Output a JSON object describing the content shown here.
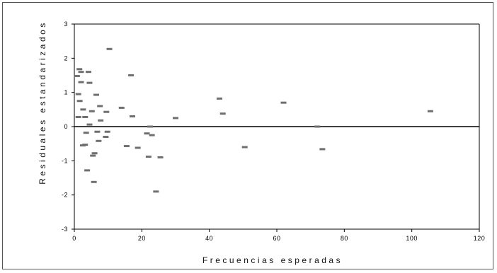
{
  "chart_data": {
    "type": "scatter",
    "xlabel": "Frecuencias esperadas",
    "ylabel": "Residuales estandarizados",
    "xlim": [
      0,
      120
    ],
    "ylim": [
      -3,
      3
    ],
    "xticks": [
      0,
      20,
      40,
      60,
      80,
      100,
      120
    ],
    "yticks": [
      -3,
      -2,
      -1,
      0,
      1,
      2,
      3
    ],
    "legend": "none",
    "grid": false,
    "marker_color": "#6f6f6f",
    "points": [
      {
        "x": 0.8,
        "y": 1.48
      },
      {
        "x": 1.5,
        "y": 1.68
      },
      {
        "x": 2.0,
        "y": 1.6
      },
      {
        "x": 2.0,
        "y": 1.3
      },
      {
        "x": 1.2,
        "y": 0.95
      },
      {
        "x": 1.6,
        "y": 0.75
      },
      {
        "x": 1.2,
        "y": 0.28
      },
      {
        "x": 2.6,
        "y": 0.5
      },
      {
        "x": 4.2,
        "y": 1.6
      },
      {
        "x": 4.5,
        "y": 1.28
      },
      {
        "x": 3.2,
        "y": 0.28
      },
      {
        "x": 3.5,
        "y": -0.18
      },
      {
        "x": 2.5,
        "y": -0.55
      },
      {
        "x": 3.2,
        "y": -0.53
      },
      {
        "x": 3.8,
        "y": -1.28
      },
      {
        "x": 4.5,
        "y": 0.06
      },
      {
        "x": 5.2,
        "y": 0.45
      },
      {
        "x": 5.5,
        "y": -0.85
      },
      {
        "x": 6.0,
        "y": -0.78
      },
      {
        "x": 5.8,
        "y": -1.62
      },
      {
        "x": 6.5,
        "y": 0.93
      },
      {
        "x": 6.8,
        "y": -0.15
      },
      {
        "x": 7.2,
        "y": -0.42
      },
      {
        "x": 7.6,
        "y": 0.6
      },
      {
        "x": 7.8,
        "y": 0.18
      },
      {
        "x": 9.5,
        "y": 0.43
      },
      {
        "x": 9.8,
        "y": -0.15
      },
      {
        "x": 9.3,
        "y": -0.3
      },
      {
        "x": 10.4,
        "y": 2.27
      },
      {
        "x": 14.0,
        "y": 0.55
      },
      {
        "x": 15.5,
        "y": -0.57
      },
      {
        "x": 16.8,
        "y": 1.5
      },
      {
        "x": 17.2,
        "y": 0.3
      },
      {
        "x": 18.8,
        "y": -0.62
      },
      {
        "x": 21.5,
        "y": -0.2
      },
      {
        "x": 22.0,
        "y": -0.88
      },
      {
        "x": 22.5,
        "y": 0.0
      },
      {
        "x": 23.0,
        "y": -0.25
      },
      {
        "x": 24.2,
        "y": -1.9
      },
      {
        "x": 25.5,
        "y": -0.9
      },
      {
        "x": 30.0,
        "y": 0.25
      },
      {
        "x": 43.0,
        "y": 0.82
      },
      {
        "x": 44.0,
        "y": 0.38
      },
      {
        "x": 50.5,
        "y": -0.6
      },
      {
        "x": 62.0,
        "y": 0.7
      },
      {
        "x": 72.0,
        "y": 0.0
      },
      {
        "x": 73.5,
        "y": -0.66
      },
      {
        "x": 105.5,
        "y": 0.45
      }
    ]
  }
}
